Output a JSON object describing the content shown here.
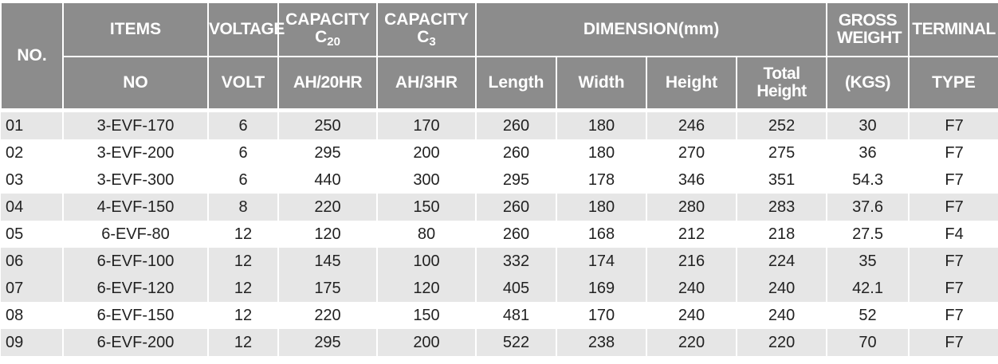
{
  "table": {
    "header": {
      "no": "NO.",
      "items": "ITEMS",
      "items_sub": "NO",
      "voltage": "VOLTAGE",
      "voltage_sub": "VOLT",
      "capacity_c20": {
        "line1": "CAPACITY",
        "symbol": "C",
        "subscript": "20"
      },
      "capacity_c20_sub": "AH/20HR",
      "capacity_c3": {
        "line1": "CAPACITY",
        "symbol": "C",
        "subscript": "3"
      },
      "capacity_c3_sub": "AH/3HR",
      "dimension": "DIMENSION(mm)",
      "length": "Length",
      "width": "Width",
      "height": "Height",
      "total_height": "Total Height",
      "gross_weight": "GROSS WEIGHT",
      "gross_weight_sub": "(KGS)",
      "terminal": "TERMINAL",
      "terminal_sub": "TYPE"
    },
    "rows": [
      [
        "01",
        "3-EVF-170",
        6,
        250,
        170,
        260,
        180,
        246,
        252,
        30,
        "F7"
      ],
      [
        "02",
        "3-EVF-200",
        6,
        295,
        200,
        260,
        180,
        270,
        275,
        36,
        "F7"
      ],
      [
        "03",
        "3-EVF-300",
        6,
        440,
        300,
        295,
        178,
        346,
        351,
        54.3,
        "F7"
      ],
      [
        "04",
        "4-EVF-150",
        8,
        220,
        150,
        260,
        180,
        280,
        283,
        37.6,
        "F7"
      ],
      [
        "05",
        "6-EVF-80",
        12,
        120,
        80,
        260,
        168,
        212,
        218,
        27.5,
        "F4"
      ],
      [
        "06",
        "6-EVF-100",
        12,
        145,
        100,
        332,
        174,
        216,
        224,
        35,
        "F7"
      ],
      [
        "07",
        "6-EVF-120",
        12,
        175,
        120,
        405,
        169,
        240,
        240,
        42.1,
        "F7"
      ],
      [
        "08",
        "6-EVF-150",
        12,
        220,
        150,
        481,
        170,
        240,
        240,
        52,
        "F7"
      ],
      [
        "09",
        "6-EVF-200",
        12,
        295,
        200,
        522,
        238,
        220,
        220,
        70,
        "F7"
      ]
    ]
  }
}
